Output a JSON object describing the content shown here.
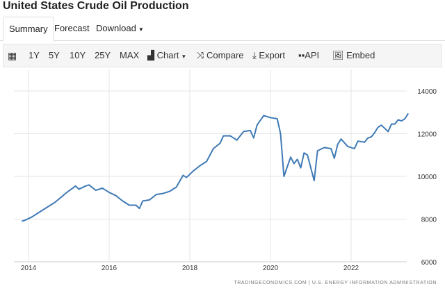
{
  "title": "United States Crude Oil Production",
  "tabs": [
    {
      "label": "Summary"
    },
    {
      "label": "Forecast"
    },
    {
      "label": "Download"
    }
  ],
  "toolbar": {
    "calendar_icon": "calendar-icon",
    "ranges": [
      "1Y",
      "5Y",
      "10Y",
      "25Y",
      "MAX"
    ],
    "chart": "Chart",
    "compare": "Compare",
    "export": "Export",
    "api": "API",
    "embed": "Embed"
  },
  "footer": "TRADINGECONOMICS.COM | U.S. ENERGY INFORMATION ADMINISTRATION",
  "colors": {
    "line": "#3f7ab5",
    "grid": "#e6e6e6"
  },
  "chart_data": {
    "type": "line",
    "title": "",
    "xlabel": "",
    "ylabel": "",
    "ylim": [
      6000,
      14000
    ],
    "yticks": [
      "6000",
      "8000",
      "10000",
      "12000",
      "14000"
    ],
    "xticks": [
      "2014",
      "2016",
      "2018",
      "2020",
      "2022"
    ],
    "grid": true,
    "series": [
      {
        "points": [
          [
            "2013-11",
            7900
          ],
          [
            "2013-12",
            7950
          ],
          [
            "2014-02",
            8100
          ],
          [
            "2014-04",
            8300
          ],
          [
            "2014-06",
            8500
          ],
          [
            "2014-09",
            8800
          ],
          [
            "2014-12",
            9200
          ],
          [
            "2015-03",
            9550
          ],
          [
            "2015-04",
            9400
          ],
          [
            "2015-06",
            9550
          ],
          [
            "2015-07",
            9600
          ],
          [
            "2015-09",
            9350
          ],
          [
            "2015-11",
            9450
          ],
          [
            "2016-01",
            9250
          ],
          [
            "2016-03",
            9100
          ],
          [
            "2016-05",
            8850
          ],
          [
            "2016-07",
            8650
          ],
          [
            "2016-09",
            8650
          ],
          [
            "2016-10",
            8500
          ],
          [
            "2016-11",
            8850
          ],
          [
            "2017-01",
            8900
          ],
          [
            "2017-03",
            9150
          ],
          [
            "2017-05",
            9200
          ],
          [
            "2017-07",
            9300
          ],
          [
            "2017-09",
            9500
          ],
          [
            "2017-11",
            10050
          ],
          [
            "2017-12",
            9950
          ],
          [
            "2018-02",
            10250
          ],
          [
            "2018-04",
            10500
          ],
          [
            "2018-06",
            10700
          ],
          [
            "2018-08",
            11300
          ],
          [
            "2018-10",
            11550
          ],
          [
            "2018-11",
            11900
          ],
          [
            "2019-01",
            11900
          ],
          [
            "2019-03",
            11700
          ],
          [
            "2019-05",
            12100
          ],
          [
            "2019-07",
            12150
          ],
          [
            "2019-08",
            11800
          ],
          [
            "2019-09",
            12400
          ],
          [
            "2019-11",
            12850
          ],
          [
            "2020-01",
            12750
          ],
          [
            "2020-03",
            12700
          ],
          [
            "2020-04",
            12000
          ],
          [
            "2020-05",
            10000
          ],
          [
            "2020-07",
            10900
          ],
          [
            "2020-08",
            10600
          ],
          [
            "2020-09",
            10800
          ],
          [
            "2020-10",
            10400
          ],
          [
            "2020-11",
            11100
          ],
          [
            "2020-12",
            11000
          ],
          [
            "2021-02",
            9800
          ],
          [
            "2021-03",
            11200
          ],
          [
            "2021-05",
            11350
          ],
          [
            "2021-07",
            11300
          ],
          [
            "2021-08",
            10850
          ],
          [
            "2021-09",
            11500
          ],
          [
            "2021-10",
            11750
          ],
          [
            "2021-12",
            11400
          ],
          [
            "2022-02",
            11300
          ],
          [
            "2022-03",
            11650
          ],
          [
            "2022-05",
            11600
          ],
          [
            "2022-06",
            11800
          ],
          [
            "2022-07",
            11850
          ],
          [
            "2022-08",
            12050
          ],
          [
            "2022-09",
            12300
          ],
          [
            "2022-10",
            12400
          ],
          [
            "2022-12",
            12100
          ],
          [
            "2023-01",
            12450
          ],
          [
            "2023-02",
            12450
          ],
          [
            "2023-03",
            12650
          ],
          [
            "2023-04",
            12600
          ],
          [
            "2023-05",
            12700
          ],
          [
            "2023-06",
            12950
          ]
        ]
      }
    ]
  }
}
